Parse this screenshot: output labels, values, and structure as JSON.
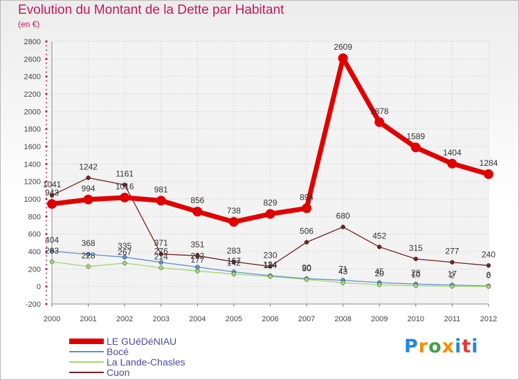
{
  "header": {
    "title": "Evolution du Montant de la Dette par Habitant",
    "subtitle": "(en €)"
  },
  "brand": {
    "letters": [
      "P",
      "r",
      "o",
      "x",
      "i",
      "t",
      "i"
    ],
    "colors": [
      "#1e88e5",
      "#fb8c00",
      "#43a047",
      "#fb8c00",
      "#1e88e5",
      "#e53935",
      "#1e88e5"
    ]
  },
  "chart_data": {
    "type": "line",
    "title": "Evolution du Montant de la Dette par Habitant",
    "subtitle": "(en €)",
    "xlabel": "",
    "ylabel": "",
    "ylim": [
      -200,
      2800
    ],
    "yticks": [
      -200,
      0,
      200,
      400,
      600,
      800,
      1000,
      1200,
      1400,
      1600,
      1800,
      2000,
      2200,
      2400,
      2600,
      2800
    ],
    "categories": [
      "2000",
      "2001",
      "2002",
      "2003",
      "2004",
      "2005",
      "2006",
      "2007",
      "2008",
      "2009",
      "2010",
      "2011",
      "2012"
    ],
    "grid": true,
    "legend_position": "bottom-left",
    "series": [
      {
        "name": "LE GUéDéNIAU",
        "color": "#e00000",
        "values": [
          943,
          994,
          1016,
          981,
          856,
          738,
          829,
          894,
          2609,
          1878,
          1589,
          1404,
          1284
        ]
      },
      {
        "name": "Bocé",
        "color": "#5b8fd0",
        "values": [
          404,
          368,
          335,
          276,
          222,
          167,
          124,
          90,
          71,
          45,
          28,
          17,
          6
        ]
      },
      {
        "name": "La Lande-Chasles",
        "color": "#9ed86e",
        "values": [
          283,
          228,
          267,
          214,
          177,
          142,
          114,
          80,
          43,
          20,
          10,
          2,
          0
        ]
      },
      {
        "name": "Cuon",
        "color": "#7a1f1f",
        "values": [
          1041,
          1242,
          1161,
          371,
          351,
          283,
          230,
          506,
          680,
          452,
          315,
          277,
          240
        ]
      }
    ],
    "data_labels": [
      [
        "943",
        "994",
        "1016",
        "981",
        "856",
        "738",
        "829",
        "894",
        "2609",
        "1878",
        "1589",
        "1404",
        "1284"
      ],
      [
        "404",
        "368",
        "335",
        "276",
        "222",
        "167",
        "124",
        "90",
        "71",
        "45",
        "28",
        "17",
        "6"
      ],
      [
        "283",
        "228",
        "267",
        "214",
        "177",
        "142",
        "114",
        "80",
        "43",
        "20",
        "10",
        "2",
        "0"
      ],
      [
        "1041",
        "1242",
        "1161",
        "371",
        "351",
        "283",
        "230",
        "506",
        "680",
        "452",
        "315",
        "277",
        "240"
      ]
    ]
  }
}
